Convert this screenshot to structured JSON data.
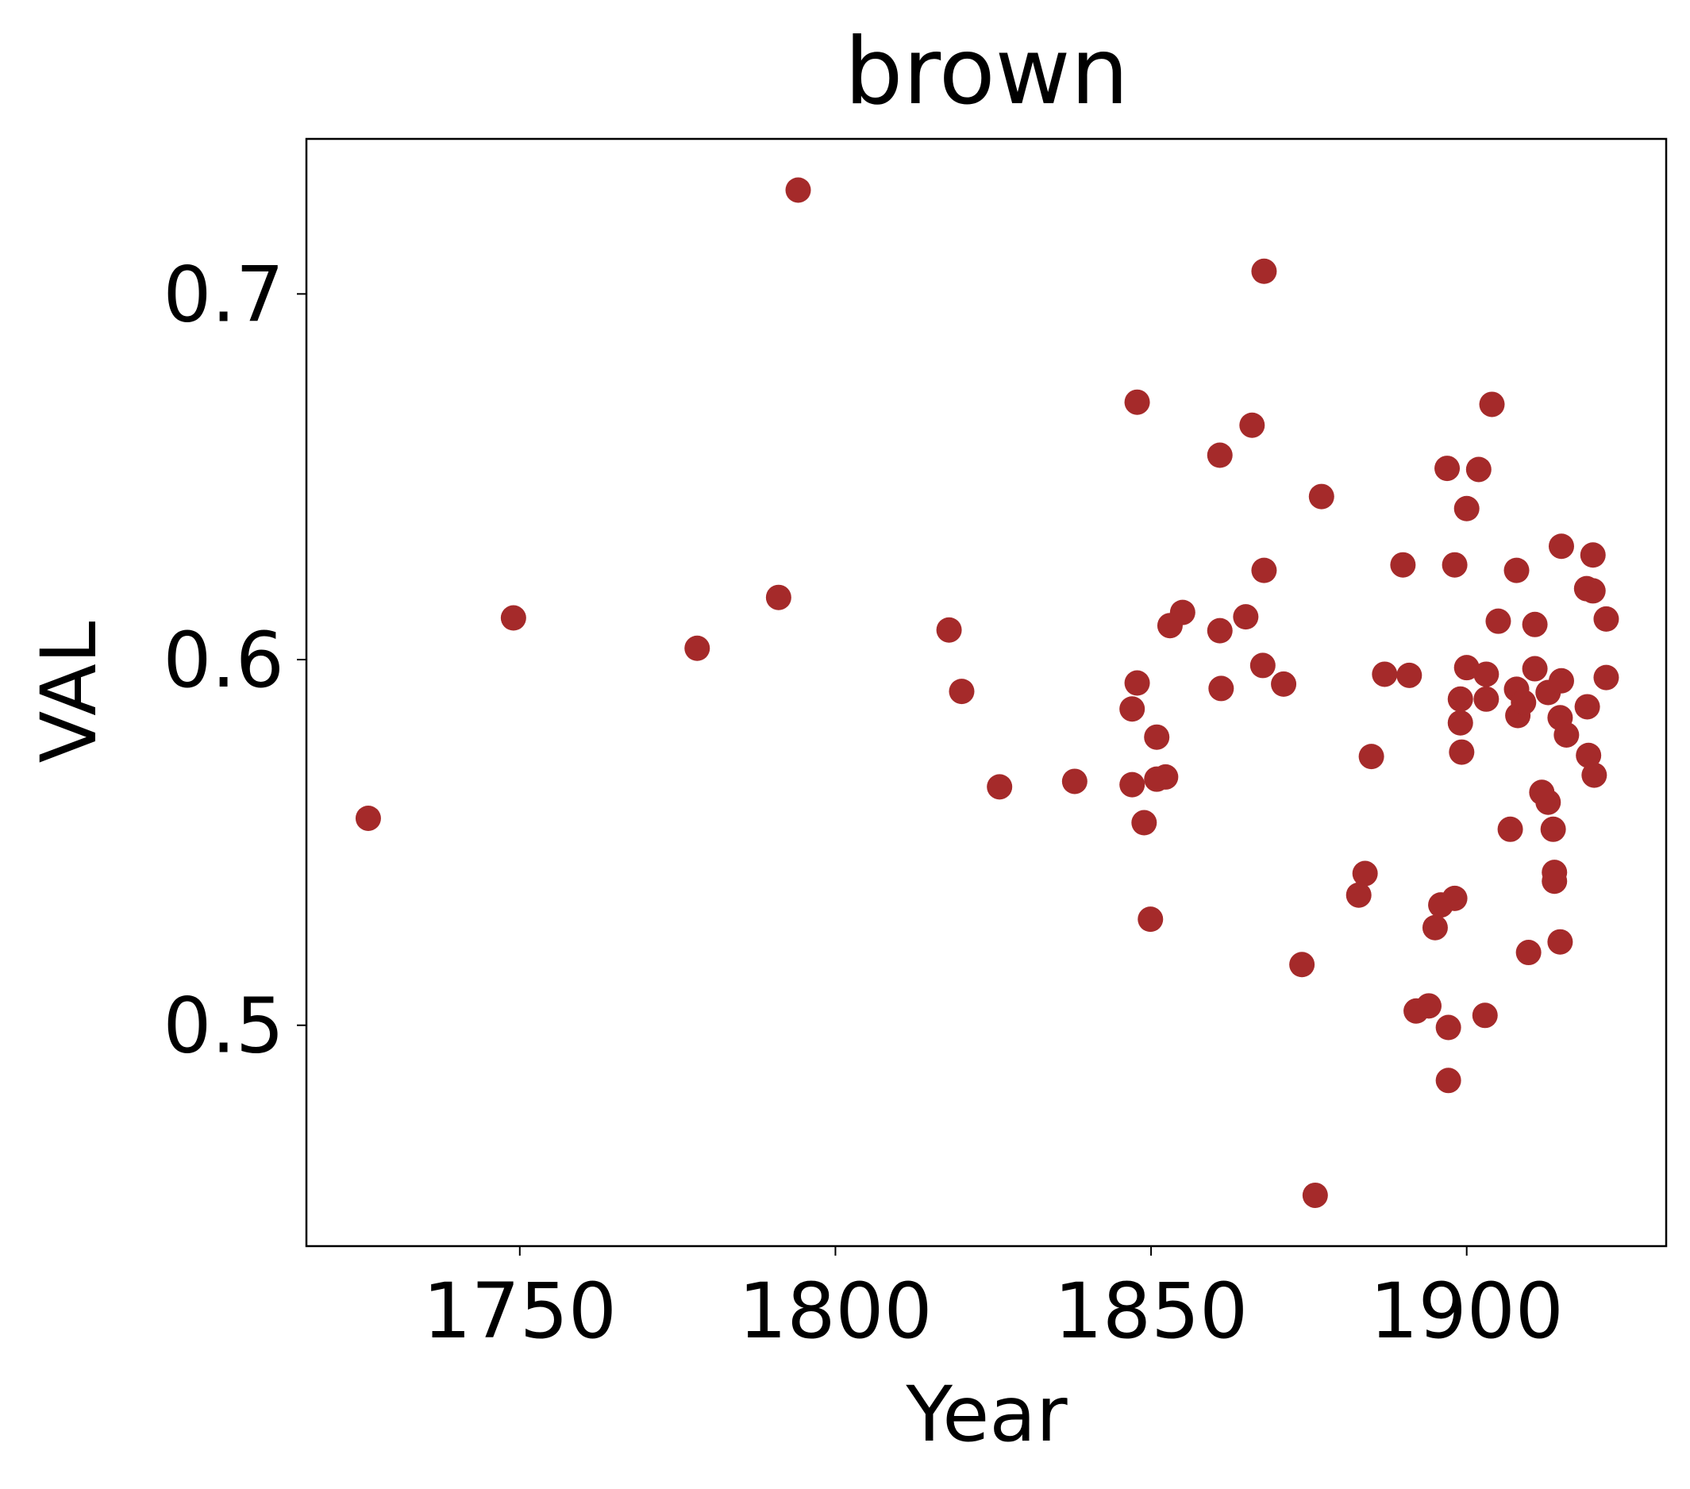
{
  "chart_data": {
    "type": "scatter",
    "title": "brown",
    "x_label": "Year",
    "y_label": "VAL",
    "color": "#a52a2a",
    "xlim": [
      1716.2,
      1931.6
    ],
    "ylim": [
      0.4396,
      0.7424
    ],
    "xticks": [
      1750,
      1800,
      1850,
      1900
    ],
    "yticks": [
      0.5,
      0.6,
      0.7
    ],
    "x": [
      1726.0,
      1749.0,
      1778.1,
      1791.0,
      1794.1,
      1818.0,
      1820.0,
      1826.0,
      1837.9,
      1847.0,
      1847.0,
      1847.8,
      1847.8,
      1848.9,
      1849.9,
      1850.9,
      1850.9,
      1852.3,
      1853.0,
      1855.0,
      1860.9,
      1860.9,
      1861.1,
      1865.0,
      1866.0,
      1867.7,
      1867.9,
      1867.9,
      1871.0,
      1873.9,
      1876.0,
      1877.0,
      1882.9,
      1883.9,
      1884.9,
      1887.0,
      1889.9,
      1890.9,
      1892.0,
      1894.0,
      1895.0,
      1895.9,
      1896.9,
      1897.1,
      1897.1,
      1898.1,
      1898.1,
      1899.0,
      1899.0,
      1899.2,
      1900.0,
      1900.0,
      1901.9,
      1902.9,
      1903.1,
      1903.1,
      1904.0,
      1905.0,
      1906.9,
      1907.9,
      1907.9,
      1908.1,
      1909.0,
      1909.8,
      1910.8,
      1910.8,
      1911.9,
      1912.9,
      1912.9,
      1913.7,
      1913.9,
      1913.9,
      1914.8,
      1914.8,
      1915.0,
      1915.0,
      1915.8,
      1919.0,
      1919.1,
      1919.3,
      1920.0,
      1920.0,
      1920.2,
      1922.1,
      1922.1
    ],
    "values": [
      0.5566,
      0.6114,
      0.6031,
      0.617,
      0.7284,
      0.6081,
      0.5913,
      0.5652,
      0.5667,
      0.5865,
      0.5658,
      0.6704,
      0.5936,
      0.5554,
      0.529,
      0.5788,
      0.5673,
      0.5679,
      0.6093,
      0.6129,
      0.6559,
      0.6079,
      0.5921,
      0.6117,
      0.6641,
      0.5984,
      0.7062,
      0.6244,
      0.5933,
      0.5166,
      0.4535,
      0.6446,
      0.5356,
      0.5415,
      0.5735,
      0.596,
      0.6259,
      0.5957,
      0.5039,
      0.5053,
      0.5267,
      0.5329,
      0.6523,
      0.4849,
      0.4994,
      0.6259,
      0.5347,
      0.5892,
      0.5827,
      0.5747,
      0.6413,
      0.5978,
      0.652,
      0.5027,
      0.596,
      0.5892,
      0.6698,
      0.6105,
      0.5536,
      0.6244,
      0.5919,
      0.5847,
      0.5883,
      0.5199,
      0.6096,
      0.5975,
      0.5637,
      0.591,
      0.561,
      0.5536,
      0.5418,
      0.5394,
      0.5228,
      0.5841,
      0.631,
      0.5942,
      0.5794,
      0.6194,
      0.5871,
      0.5738,
      0.6286,
      0.6188,
      0.5684,
      0.6111,
      0.5951
    ]
  }
}
